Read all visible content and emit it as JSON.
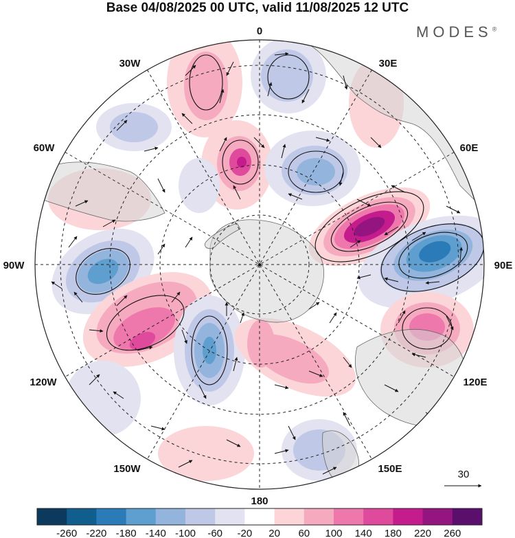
{
  "header": {
    "title": "Base 04/08/2025 00 UTC, valid 11/08/2025 12 UTC",
    "brand": "MODES",
    "brand_mark": "®"
  },
  "map": {
    "projection": "south-polar-stereographic",
    "longitude_labels": [
      "0",
      "30E",
      "60E",
      "90E",
      "120E",
      "150E",
      "180",
      "150W",
      "120W",
      "90W",
      "60W",
      "30W"
    ],
    "reference_vector": {
      "label": "30"
    }
  },
  "anomaly_centers": [
    {
      "name": "anomaly-positive-30w",
      "sign": "positive",
      "peak": 100
    },
    {
      "name": "anomaly-positive-15w",
      "sign": "positive",
      "peak": 180
    },
    {
      "name": "anomaly-positive-50e",
      "sign": "positive",
      "peak": 260
    },
    {
      "name": "anomaly-negative-90e",
      "sign": "negative",
      "peak": -180
    },
    {
      "name": "anomaly-negative-90w",
      "sign": "negative",
      "peak": -180
    },
    {
      "name": "anomaly-positive-115w",
      "sign": "positive",
      "peak": 180
    },
    {
      "name": "anomaly-negative-150w",
      "sign": "negative",
      "peak": -140
    },
    {
      "name": "anomaly-positive-160e",
      "sign": "positive",
      "peak": 140
    },
    {
      "name": "anomaly-positive-115e",
      "sign": "positive",
      "peak": 180
    },
    {
      "name": "anomaly-negative-20e",
      "sign": "negative",
      "peak": -100
    },
    {
      "name": "anomaly-negative-40e",
      "sign": "negative",
      "peak": -140
    },
    {
      "name": "anomaly-negative-145e",
      "sign": "negative",
      "peak": -100
    }
  ],
  "colorbar": {
    "tick_labels": [
      "-260",
      "-220",
      "-180",
      "-140",
      "-100",
      "-60",
      "-20",
      "20",
      "60",
      "100",
      "140",
      "180",
      "220",
      "260"
    ],
    "colors": [
      "#0b3a5c",
      "#0f5e8e",
      "#2b7bb9",
      "#5e9fd0",
      "#93b4dc",
      "#bfc8e6",
      "#e3e2f0",
      "#ffffff",
      "#fbd5d8",
      "#f6aac0",
      "#ee78ab",
      "#df4a9c",
      "#c41b8d",
      "#941580",
      "#5b0f6d"
    ]
  }
}
